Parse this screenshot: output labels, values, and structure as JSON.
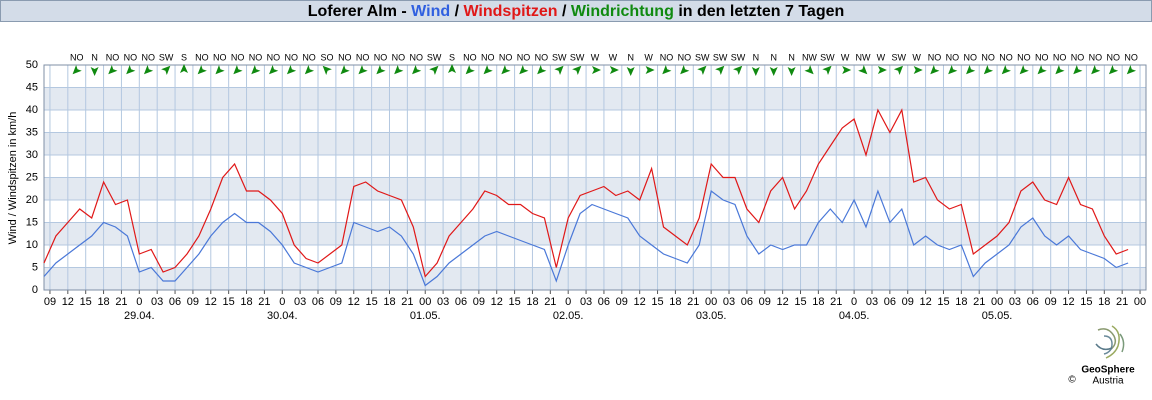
{
  "chart_data": {
    "type": "line",
    "title_prefix": "Loferer Alm -",
    "title_separator": "/",
    "title_suffix": "in den letzten 7 Tagen",
    "ylabel": "Wind / Windspitzen in km/h",
    "ylim": [
      0,
      50
    ],
    "yticks": [
      0,
      5,
      10,
      15,
      20,
      25,
      30,
      35,
      40,
      45,
      50
    ],
    "xlim": [
      -16,
      169
    ],
    "grid": true,
    "bands": true,
    "xticks": [
      {
        "value": -15,
        "label": "09"
      },
      {
        "value": -12,
        "label": "12"
      },
      {
        "value": -9,
        "label": "15"
      },
      {
        "value": -6,
        "label": "18"
      },
      {
        "value": -3,
        "label": "21"
      },
      {
        "value": 0,
        "label": "0"
      },
      {
        "value": 3,
        "label": "03"
      },
      {
        "value": 6,
        "label": "06"
      },
      {
        "value": 9,
        "label": "09"
      },
      {
        "value": 12,
        "label": "12"
      },
      {
        "value": 15,
        "label": "15"
      },
      {
        "value": 18,
        "label": "18"
      },
      {
        "value": 21,
        "label": "21"
      },
      {
        "value": 24,
        "label": "0"
      },
      {
        "value": 27,
        "label": "03"
      },
      {
        "value": 30,
        "label": "06"
      },
      {
        "value": 33,
        "label": "09"
      },
      {
        "value": 36,
        "label": "12"
      },
      {
        "value": 39,
        "label": "15"
      },
      {
        "value": 42,
        "label": "18"
      },
      {
        "value": 45,
        "label": "21"
      },
      {
        "value": 48,
        "label": "00"
      },
      {
        "value": 51,
        "label": "03"
      },
      {
        "value": 54,
        "label": "06"
      },
      {
        "value": 57,
        "label": "09"
      },
      {
        "value": 60,
        "label": "12"
      },
      {
        "value": 63,
        "label": "15"
      },
      {
        "value": 66,
        "label": "18"
      },
      {
        "value": 69,
        "label": "21"
      },
      {
        "value": 72,
        "label": "0"
      },
      {
        "value": 75,
        "label": "03"
      },
      {
        "value": 78,
        "label": "06"
      },
      {
        "value": 81,
        "label": "09"
      },
      {
        "value": 84,
        "label": "12"
      },
      {
        "value": 87,
        "label": "15"
      },
      {
        "value": 90,
        "label": "18"
      },
      {
        "value": 93,
        "label": "21"
      },
      {
        "value": 96,
        "label": "00"
      },
      {
        "value": 99,
        "label": "03"
      },
      {
        "value": 102,
        "label": "06"
      },
      {
        "value": 105,
        "label": "09"
      },
      {
        "value": 108,
        "label": "12"
      },
      {
        "value": 111,
        "label": "15"
      },
      {
        "value": 114,
        "label": "18"
      },
      {
        "value": 117,
        "label": "21"
      },
      {
        "value": 120,
        "label": "0"
      },
      {
        "value": 123,
        "label": "03"
      },
      {
        "value": 126,
        "label": "06"
      },
      {
        "value": 129,
        "label": "09"
      },
      {
        "value": 132,
        "label": "12"
      },
      {
        "value": 135,
        "label": "15"
      },
      {
        "value": 138,
        "label": "18"
      },
      {
        "value": 141,
        "label": "21"
      },
      {
        "value": 144,
        "label": "00"
      },
      {
        "value": 147,
        "label": "03"
      },
      {
        "value": 150,
        "label": "06"
      },
      {
        "value": 153,
        "label": "09"
      },
      {
        "value": 156,
        "label": "12"
      },
      {
        "value": 159,
        "label": "15"
      },
      {
        "value": 162,
        "label": "18"
      },
      {
        "value": 165,
        "label": "21"
      },
      {
        "value": 168,
        "label": "00"
      }
    ],
    "date_ticks": [
      {
        "value": 0,
        "label": "29.04."
      },
      {
        "value": 24,
        "label": "30.04."
      },
      {
        "value": 48,
        "label": "01.05."
      },
      {
        "value": 72,
        "label": "02.05."
      },
      {
        "value": 96,
        "label": "03.05."
      },
      {
        "value": 120,
        "label": "04.05."
      },
      {
        "value": 144,
        "label": "05.05."
      }
    ],
    "x": [
      -16,
      -14,
      -12,
      -10,
      -8,
      -6,
      -4,
      -2,
      0,
      2,
      4,
      6,
      8,
      10,
      12,
      14,
      16,
      18,
      20,
      22,
      24,
      26,
      28,
      30,
      32,
      34,
      36,
      38,
      40,
      42,
      44,
      46,
      48,
      50,
      52,
      54,
      56,
      58,
      60,
      62,
      64,
      66,
      68,
      70,
      72,
      74,
      76,
      78,
      80,
      82,
      84,
      86,
      88,
      90,
      92,
      94,
      96,
      98,
      100,
      102,
      104,
      106,
      108,
      110,
      112,
      114,
      116,
      118,
      120,
      122,
      124,
      126,
      128,
      130,
      132,
      134,
      136,
      138,
      140,
      142,
      144,
      146,
      148,
      150,
      152,
      154,
      156,
      158,
      160,
      162,
      164,
      166
    ],
    "series": [
      {
        "name": "Windspitzen",
        "color": "#e01818",
        "values": [
          6,
          12,
          15,
          18,
          16,
          24,
          19,
          20,
          8,
          9,
          4,
          5,
          8,
          12,
          18,
          25,
          28,
          22,
          22,
          20,
          17,
          10,
          7,
          6,
          8,
          10,
          23,
          24,
          22,
          21,
          20,
          14,
          3,
          6,
          12,
          15,
          18,
          22,
          21,
          19,
          19,
          17,
          16,
          5,
          16,
          21,
          22,
          23,
          21,
          22,
          20,
          27,
          14,
          12,
          10,
          16,
          28,
          25,
          25,
          18,
          15,
          22,
          25,
          18,
          22,
          28,
          32,
          36,
          38,
          30,
          40,
          35,
          40,
          24,
          25,
          20,
          18,
          19,
          8,
          10,
          12,
          15,
          22,
          24,
          20,
          19,
          25,
          19,
          18,
          12,
          8,
          9
        ]
      },
      {
        "name": "Wind",
        "color": "#4a78d8",
        "values": [
          3,
          6,
          8,
          10,
          12,
          15,
          14,
          12,
          4,
          5,
          2,
          2,
          5,
          8,
          12,
          15,
          17,
          15,
          15,
          13,
          10,
          6,
          5,
          4,
          5,
          6,
          15,
          14,
          13,
          14,
          12,
          8,
          1,
          3,
          6,
          8,
          10,
          12,
          13,
          12,
          11,
          10,
          9,
          2,
          10,
          17,
          19,
          18,
          17,
          16,
          12,
          10,
          8,
          7,
          6,
          10,
          22,
          20,
          19,
          12,
          8,
          10,
          9,
          10,
          10,
          15,
          18,
          15,
          20,
          14,
          22,
          15,
          18,
          10,
          12,
          10,
          9,
          10,
          3,
          6,
          8,
          10,
          14,
          16,
          12,
          10,
          12,
          9,
          8,
          7,
          5,
          6
        ]
      }
    ],
    "directions": {
      "name": "Windrichtung",
      "color": "#108a10",
      "x": [
        -10.5,
        -7.5,
        -4.5,
        -1.5,
        1.5,
        4.5,
        7.5,
        10.5,
        13.5,
        16.5,
        19.5,
        22.5,
        25.5,
        28.5,
        31.5,
        34.5,
        37.5,
        40.5,
        43.5,
        46.5,
        49.5,
        52.5,
        55.5,
        58.5,
        61.5,
        64.5,
        67.5,
        70.5,
        73.5,
        76.5,
        79.5,
        82.5,
        85.5,
        88.5,
        91.5,
        94.5,
        97.5,
        100.5,
        103.5,
        106.5,
        109.5,
        112.5,
        115.5,
        118.5,
        121.5,
        124.5,
        127.5,
        130.5,
        133.5,
        136.5,
        139.5,
        142.5,
        145.5,
        148.5,
        151.5,
        154.5,
        157.5,
        160.5,
        163.5,
        166.5
      ],
      "labels": [
        "NO",
        "N",
        "NO",
        "NO",
        "NO",
        "SW",
        "S",
        "NO",
        "NO",
        "NO",
        "NO",
        "NO",
        "NO",
        "NO",
        "SO",
        "NO",
        "NO",
        "NO",
        "NO",
        "NO",
        "SW",
        "S",
        "NO",
        "NO",
        "NO",
        "NO",
        "NO",
        "SW",
        "SW",
        "W",
        "W",
        "N",
        "W",
        "NO",
        "NO",
        "SW",
        "SW",
        "SW",
        "N",
        "N",
        "N",
        "NW",
        "SW",
        "W",
        "NW",
        "W",
        "SW",
        "W",
        "NO",
        "NO",
        "NO",
        "NO",
        "NO",
        "NO",
        "NO",
        "NO",
        "NO",
        "NO",
        "NO",
        "NO"
      ],
      "arrow_deg": [
        225,
        180,
        225,
        225,
        225,
        45,
        0,
        225,
        225,
        225,
        225,
        225,
        225,
        225,
        315,
        225,
        225,
        225,
        225,
        225,
        45,
        0,
        225,
        225,
        225,
        225,
        225,
        45,
        45,
        90,
        90,
        180,
        90,
        225,
        225,
        45,
        45,
        45,
        180,
        180,
        180,
        135,
        45,
        90,
        135,
        90,
        45,
        90,
        225,
        225,
        225,
        225,
        225,
        225,
        225,
        225,
        225,
        225,
        225,
        225
      ]
    },
    "logo": {
      "name": "GeoSphere",
      "sub": "Austria",
      "copyright": "©"
    }
  }
}
